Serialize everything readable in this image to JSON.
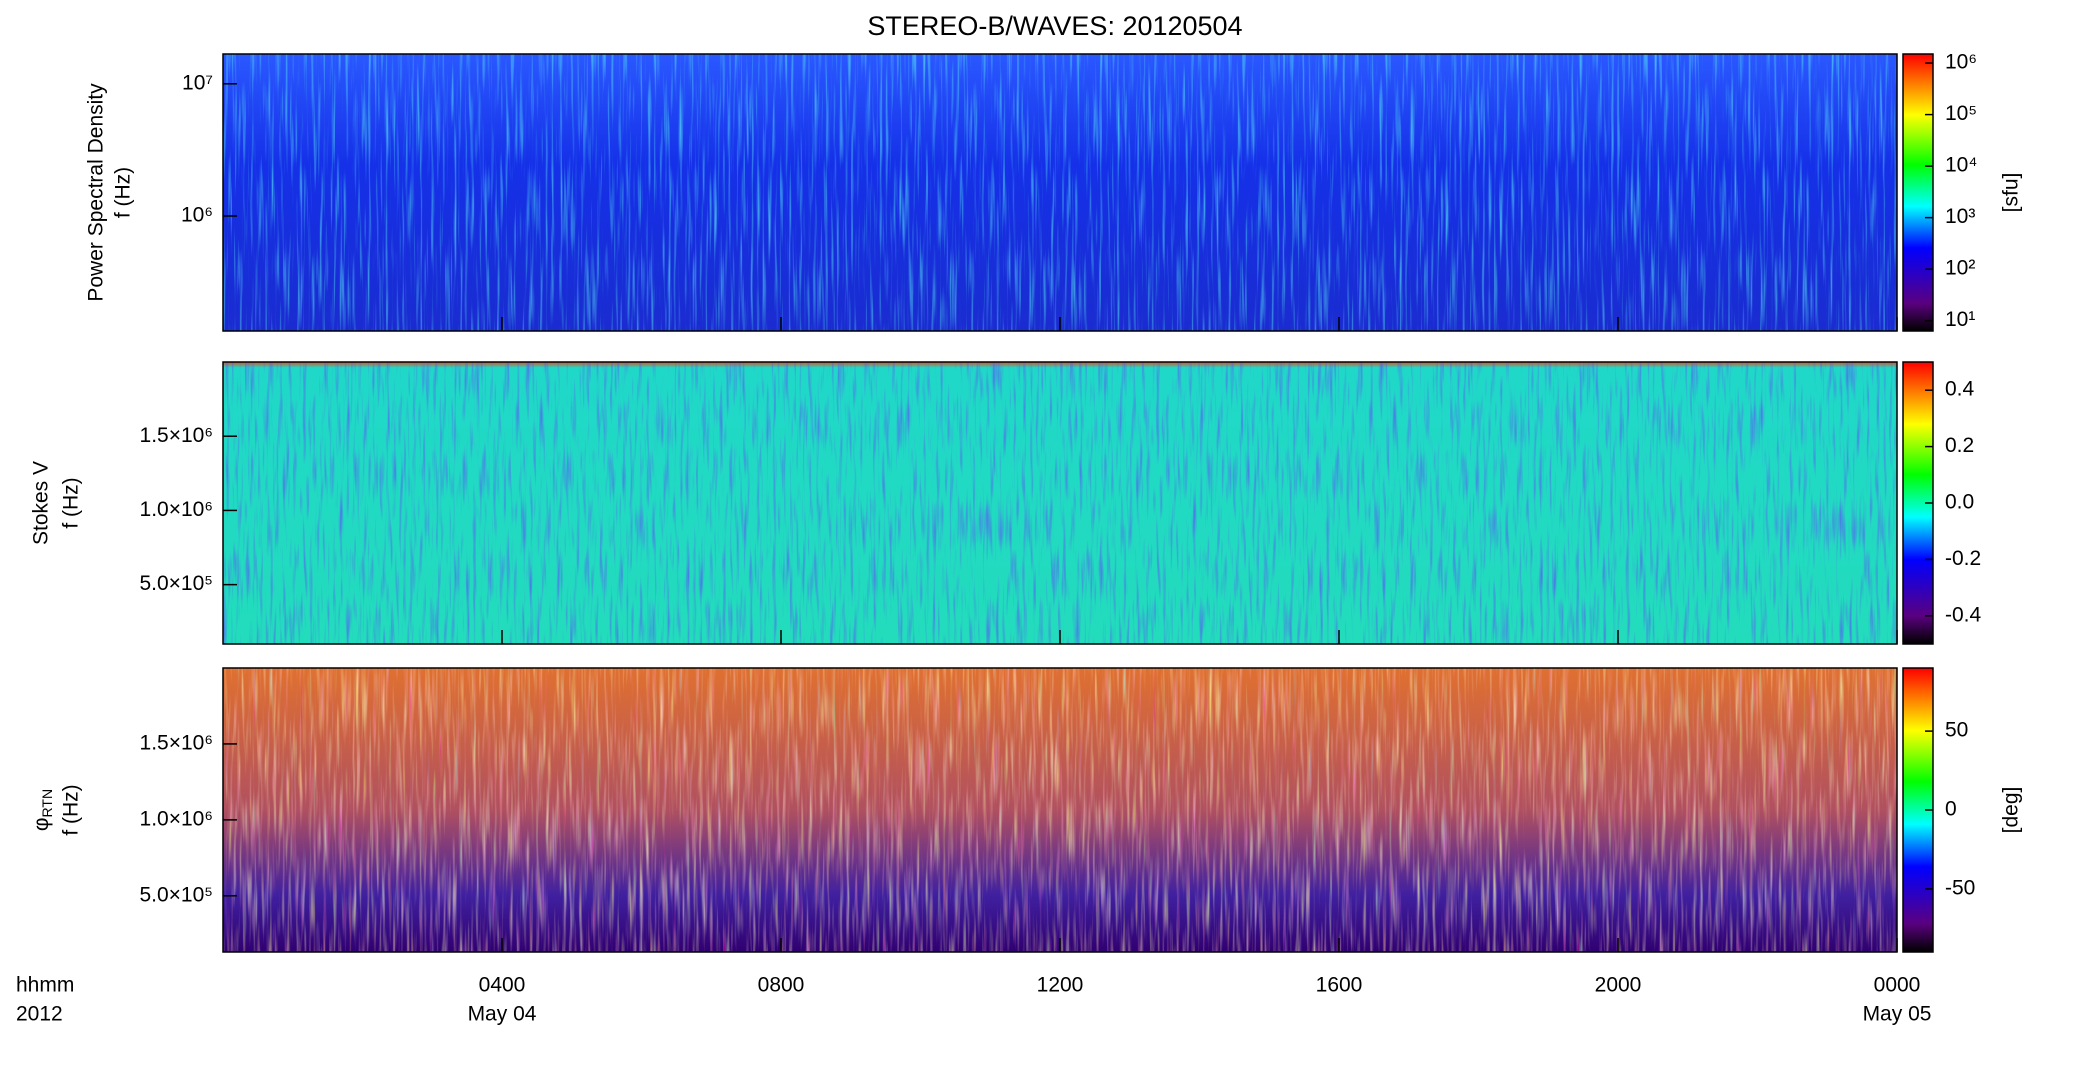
{
  "title": "STEREO-B/WAVES: 20120504",
  "x_axis": {
    "xlim": [
      0,
      24
    ],
    "xticks": [
      {
        "value": 4,
        "label": "0400",
        "date": "May 04"
      },
      {
        "value": 8,
        "label": "0800"
      },
      {
        "value": 12,
        "label": "1200"
      },
      {
        "value": 16,
        "label": "1600"
      },
      {
        "value": 20,
        "label": "2000"
      },
      {
        "value": 24,
        "label": "0000",
        "date": "May 05"
      }
    ],
    "corner_labels": [
      "hhmm",
      "2012"
    ]
  },
  "chart_data": [
    {
      "type": "heatmap",
      "ylabel": [
        "Power Spectral Density",
        "f (Hz)"
      ],
      "yscale": "log",
      "ylim": [
        135000,
        16800000
      ],
      "yticks": [
        {
          "value": 1000000,
          "label": "10⁶"
        },
        {
          "value": 10000000,
          "label": "10⁷"
        }
      ],
      "colorbar": {
        "scale": "log",
        "lim": [
          6.3,
          1500000
        ],
        "label": "[sfu]",
        "ticks": [
          {
            "value": 10,
            "label": "10¹"
          },
          {
            "value": 100,
            "label": "10²"
          },
          {
            "value": 1000,
            "label": "10³"
          },
          {
            "value": 10000,
            "label": "10⁴"
          },
          {
            "value": 100000,
            "label": "10⁵"
          },
          {
            "value": 1000000,
            "label": "10⁶"
          }
        ]
      }
    },
    {
      "type": "heatmap",
      "ylabel": [
        "Stokes V",
        "f (Hz)"
      ],
      "yscale": "linear",
      "ylim": [
        100000,
        2000000
      ],
      "yticks": [
        {
          "value": 500000,
          "label": "5.0×10⁵"
        },
        {
          "value": 1000000,
          "label": "1.0×10⁶"
        },
        {
          "value": 1500000,
          "label": "1.5×10⁶"
        }
      ],
      "colorbar": {
        "scale": "linear",
        "lim": [
          -0.5,
          0.5
        ],
        "ticks": [
          {
            "value": -0.4,
            "label": "-0.4"
          },
          {
            "value": -0.2,
            "label": "-0.2"
          },
          {
            "value": 0,
            "label": "0.0"
          },
          {
            "value": 0.2,
            "label": "0.2"
          },
          {
            "value": 0.4,
            "label": "0.4"
          }
        ]
      }
    },
    {
      "type": "heatmap",
      "ylabel": [
        {
          "symbol": "φ",
          "subscript": "RTN"
        },
        "f (Hz)"
      ],
      "yscale": "linear",
      "ylim": [
        130000,
        2000000
      ],
      "yticks": [
        {
          "value": 500000,
          "label": "5.0×10⁵"
        },
        {
          "value": 1000000,
          "label": "1.0×10⁶"
        },
        {
          "value": 1500000,
          "label": "1.5×10⁶"
        }
      ],
      "colorbar": {
        "scale": "linear",
        "lim": [
          -90,
          90
        ],
        "label": "[deg]",
        "ticks": [
          -50,
          0,
          50
        ]
      }
    }
  ]
}
